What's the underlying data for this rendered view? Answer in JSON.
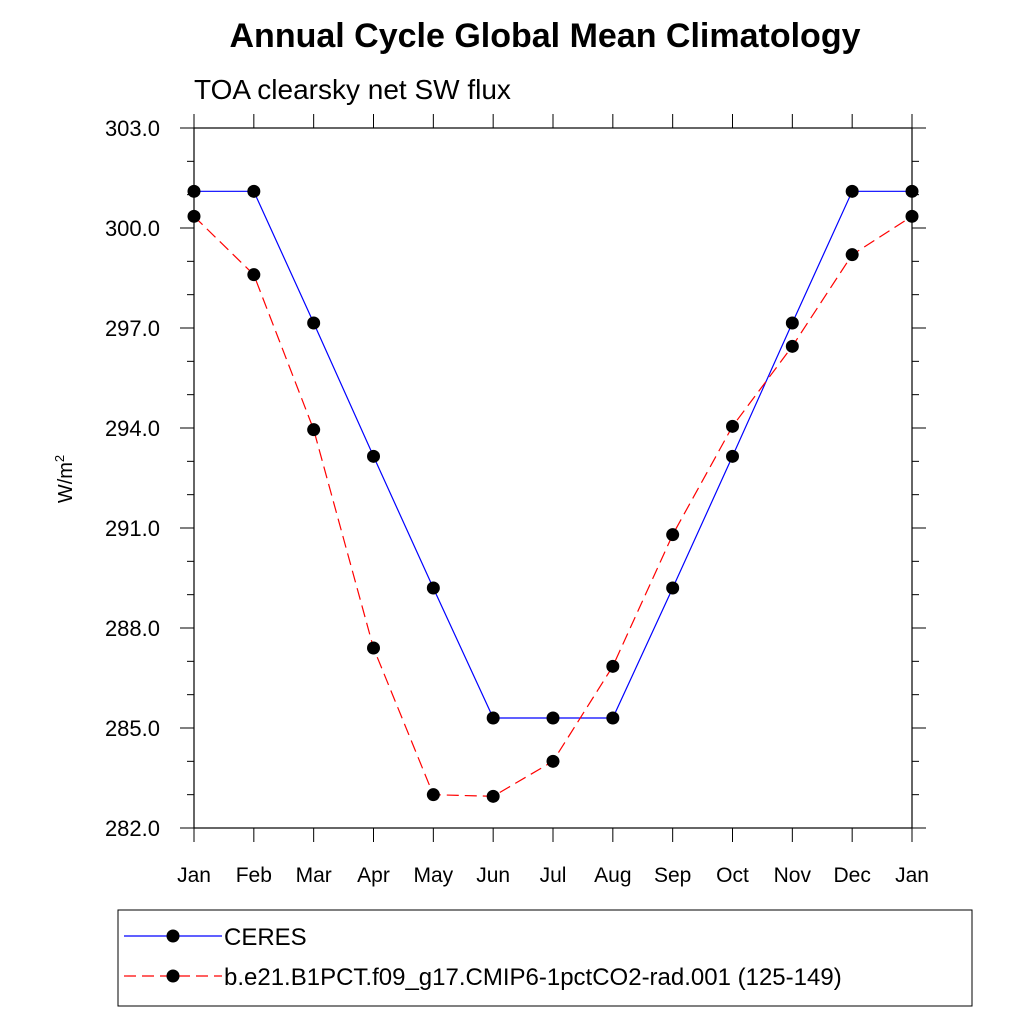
{
  "chart_data": {
    "type": "line",
    "title": "Annual Cycle Global Mean Climatology",
    "subtitle": "TOA clearsky net SW flux",
    "ylabel": "W/m",
    "ylabel_sup": "2",
    "xlabel": "",
    "categories": [
      "Jan",
      "Feb",
      "Mar",
      "Apr",
      "May",
      "Jun",
      "Jul",
      "Aug",
      "Sep",
      "Oct",
      "Nov",
      "Dec",
      "Jan"
    ],
    "ylim": [
      282.0,
      303.0
    ],
    "yticks": [
      "282.0",
      "285.0",
      "288.0",
      "291.0",
      "294.0",
      "297.0",
      "300.0",
      "303.0"
    ],
    "grid": false,
    "legend_position": "bottom",
    "series": [
      {
        "name": "CERES",
        "color": "#0000ff",
        "line_style": "solid",
        "marker": "filled-circle",
        "values": [
          301.1,
          301.1,
          297.15,
          293.15,
          289.2,
          285.3,
          285.3,
          285.3,
          289.2,
          293.15,
          297.15,
          301.1,
          301.1
        ]
      },
      {
        "name": "b.e21.B1PCT.f09_g17.CMIP6-1pctCO2-rad.001 (125-149)",
        "color": "#ff0000",
        "line_style": "dashed",
        "marker": "filled-circle",
        "values": [
          300.35,
          298.6,
          293.95,
          287.4,
          283.0,
          282.95,
          284.0,
          286.85,
          290.8,
          294.05,
          296.45,
          299.2,
          300.35
        ]
      }
    ]
  }
}
